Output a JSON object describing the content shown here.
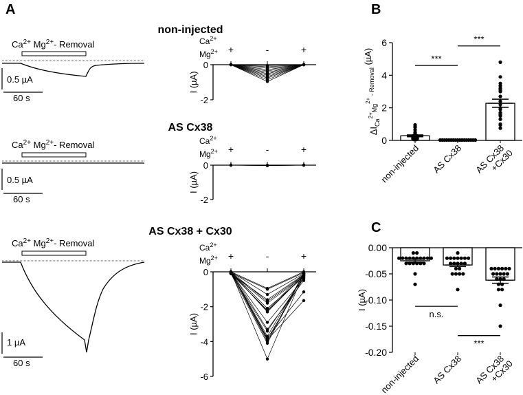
{
  "panels": {
    "A": "A",
    "B": "B",
    "C": "C"
  },
  "traces": [
    {
      "title": "non-injected",
      "stim_label": "Ca²⁺ Mg²⁺- Removal",
      "scale_y": "0.5 µA",
      "scale_x": "60 s",
      "peak_uA": -0.5
    },
    {
      "title": "AS Cx38",
      "stim_label": "Ca²⁺ Mg²⁺- Removal",
      "scale_y": "0.5 µA",
      "scale_x": "60 s",
      "peak_uA": -0.01
    },
    {
      "title": "AS Cx38 + Cx30",
      "stim_label": "Ca²⁺ Mg²⁺- Removal",
      "scale_y": "1 µA",
      "scale_x": "60 s",
      "peak_uA": -4.6
    }
  ],
  "chart_data": [
    {
      "id": "A1-paired",
      "type": "line",
      "title": "non-injected",
      "condition_header": [
        "Ca2+",
        "Mg2+"
      ],
      "x": [
        "+",
        "-",
        "+"
      ],
      "ylabel": "I (µA)",
      "ylim": [
        -2,
        0
      ],
      "yticks": [
        0,
        -2
      ],
      "series_mid_values": [
        -0.05,
        -0.12,
        -0.2,
        -0.28,
        -0.36,
        -0.44,
        -0.52,
        -0.6,
        -0.68,
        -0.76,
        -0.86,
        -0.96
      ],
      "series_start_values": [
        0,
        0,
        0,
        0,
        0,
        0,
        0,
        0,
        0,
        0,
        0,
        0
      ],
      "series_end_values": [
        0,
        0,
        0,
        0,
        0,
        0,
        0,
        0,
        0,
        0,
        0,
        0
      ]
    },
    {
      "id": "A2-paired",
      "type": "line",
      "title": "AS Cx38",
      "condition_header": [
        "Ca2+",
        "Mg2+"
      ],
      "x": [
        "+",
        "-",
        "+"
      ],
      "ylabel": "I (µA)",
      "ylim": [
        -2,
        0
      ],
      "yticks": [
        0,
        -2
      ],
      "series_mid_values": [
        -0.01,
        -0.02,
        -0.03,
        -0.02,
        -0.01
      ],
      "series_start_values": [
        0,
        0,
        0,
        0,
        0
      ],
      "series_end_values": [
        0,
        0,
        0,
        0,
        0
      ]
    },
    {
      "id": "A3-paired",
      "type": "line",
      "title": "AS Cx38 + Cx30",
      "condition_header": [
        "Ca2+",
        "Mg2+"
      ],
      "x": [
        "+",
        "-",
        "+"
      ],
      "ylabel": "I (µA)",
      "ylim": [
        -6,
        0
      ],
      "yticks": [
        0,
        -2,
        -4,
        -6
      ],
      "series_start_values": [
        0,
        -0.05,
        0,
        -0.1,
        0,
        -0.05,
        0,
        -0.1,
        0,
        -0.05,
        0,
        -0.1,
        0,
        -0.05,
        0,
        0,
        -0.1,
        0,
        -0.05,
        0
      ],
      "series_mid_values": [
        -0.95,
        -1.0,
        -1.3,
        -1.6,
        -1.7,
        -1.8,
        -2.1,
        -2.2,
        -2.3,
        -2.9,
        -3.3,
        -3.4,
        -3.7,
        -3.8,
        -3.9,
        -4.0,
        -4.1,
        -3.85,
        -2.25,
        -5.0
      ],
      "series_end_values": [
        0,
        -0.05,
        -0.1,
        -0.15,
        -0.2,
        -0.25,
        -0.3,
        -0.1,
        -0.2,
        -0.4,
        -0.5,
        -0.3,
        -0.15,
        -1.15,
        -1.65,
        -0.05,
        -0.1,
        -0.35,
        -0.2,
        -0.1
      ]
    },
    {
      "id": "B",
      "type": "bar",
      "categories": [
        "non-injected",
        "AS Cx38",
        "AS Cx38\n+Cx30"
      ],
      "values": [
        0.28,
        0.02,
        2.28
      ],
      "sem": [
        0.06,
        0.005,
        0.25
      ],
      "points": [
        [
          0.95,
          0.85,
          0.8,
          0.65,
          0.5,
          0.4,
          0.35,
          0.3,
          0.3,
          0.25,
          0.25,
          0.2,
          0.2,
          0.2,
          0.15,
          0.15,
          0.1,
          0.1,
          0.1,
          0.05,
          0.05
        ],
        [
          0.02,
          0.02,
          0.02,
          0.02,
          0.02,
          0.02,
          0.02,
          0.02,
          0.02,
          0.02,
          0.02,
          0.02,
          0.02,
          0.02,
          0.02,
          0.02,
          0.02
        ],
        [
          4.8,
          3.9,
          3.5,
          3.35,
          3.2,
          3.1,
          3.0,
          2.7,
          2.4,
          2.2,
          2.0,
          1.9,
          1.7,
          1.6,
          1.55,
          1.5,
          1.3,
          1.0,
          0.95,
          0.75
        ]
      ],
      "ylabel": "ΔI Ca2+Mg2+ - Removal (µA)",
      "ylabel_parts": {
        "delta_i": "ΔI",
        "sub": "Ca",
        "sup1": "2+",
        "mg": "Mg",
        "sup2": "2+",
        "rest": " - Removal",
        "unit": " (µA)"
      },
      "ylim": [
        0,
        6
      ],
      "yticks": [
        0,
        2,
        4,
        6
      ],
      "significance": [
        {
          "from": 0,
          "to": 1,
          "label": "***",
          "y": 4.6
        },
        {
          "from": 1,
          "to": 2,
          "label": "***",
          "y": 5.8
        }
      ]
    },
    {
      "id": "C",
      "type": "bar",
      "categories": [
        "non-injected",
        "AS Cx38",
        "AS Cx38\n+Cx30"
      ],
      "values": [
        -0.025,
        -0.033,
        -0.062
      ],
      "sem": [
        0.003,
        0.003,
        0.006
      ],
      "points": [
        [
          -0.01,
          -0.01,
          -0.02,
          -0.02,
          -0.02,
          -0.02,
          -0.02,
          -0.02,
          -0.02,
          -0.02,
          -0.02,
          -0.02,
          -0.03,
          -0.03,
          -0.03,
          -0.03,
          -0.03,
          -0.03,
          -0.05,
          -0.07
        ],
        [
          -0.01,
          -0.02,
          -0.02,
          -0.02,
          -0.02,
          -0.02,
          -0.02,
          -0.02,
          -0.03,
          -0.03,
          -0.03,
          -0.03,
          -0.03,
          -0.04,
          -0.04,
          -0.05,
          -0.05,
          -0.05,
          -0.05,
          -0.08
        ],
        [
          -0.04,
          -0.04,
          -0.04,
          -0.04,
          -0.04,
          -0.04,
          -0.05,
          -0.05,
          -0.05,
          -0.05,
          -0.05,
          -0.06,
          -0.06,
          -0.06,
          -0.07,
          -0.07,
          -0.08,
          -0.08,
          -0.11,
          -0.15
        ]
      ],
      "ylabel": "I (µA)",
      "ylim": [
        -0.2,
        0
      ],
      "yticks": [
        0.0,
        -0.05,
        -0.1,
        -0.15,
        -0.2
      ],
      "ytick_labels": [
        "0.00",
        "-0.05",
        "-0.10",
        "-0.15",
        "-0.20"
      ],
      "significance": [
        {
          "from": 0,
          "to": 1,
          "label": "n.s.",
          "y": -0.112,
          "label_below": true
        },
        {
          "from": 1,
          "to": 2,
          "label": "***",
          "y": -0.168,
          "label_below": true
        }
      ]
    }
  ]
}
